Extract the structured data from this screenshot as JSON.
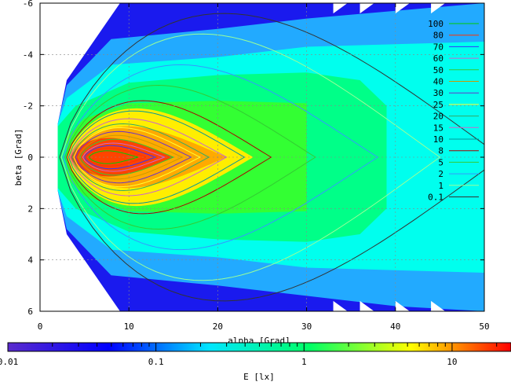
{
  "chart_data": {
    "type": "heatmap",
    "title": "",
    "xlabel": "alpha [Grad]",
    "ylabel": "beta [Grad]",
    "xlim": [
      0,
      50
    ],
    "ylim": [
      6,
      -6
    ],
    "x_ticks": [
      0,
      10,
      20,
      30,
      40,
      50
    ],
    "y_ticks": [
      -6,
      -4,
      -2,
      0,
      2,
      4,
      6
    ],
    "x_tick_labels": [
      "0",
      "10",
      "20",
      "30",
      "40",
      "50"
    ],
    "y_tick_labels": [
      "-6",
      "-4",
      "-2",
      "0",
      "2",
      "4",
      "6"
    ],
    "grid": true,
    "legend_placement": "top-right",
    "contour_levels": [
      {
        "label": "100",
        "color": "#00cc00"
      },
      {
        "label": "80",
        "color": "#ff3300"
      },
      {
        "label": "70",
        "color": "#3333ff"
      },
      {
        "label": "60",
        "color": "#cc66cc"
      },
      {
        "label": "50",
        "color": "#33cc33"
      },
      {
        "label": "40",
        "color": "#cc9900"
      },
      {
        "label": "30",
        "color": "#6633cc"
      },
      {
        "label": "25",
        "color": "#ffff33"
      },
      {
        "label": "20",
        "color": "#33aa66"
      },
      {
        "label": "15",
        "color": "#cc66cc"
      },
      {
        "label": "10",
        "color": "#009999"
      },
      {
        "label": "8",
        "color": "#aa0000"
      },
      {
        "label": "5",
        "color": "#33cc33"
      },
      {
        "label": "2",
        "color": "#3399ff"
      },
      {
        "label": "1",
        "color": "#99ff99"
      },
      {
        "label": "0.1",
        "color": "#333333"
      }
    ],
    "colorbar": {
      "label": "E [lx]",
      "scale": "log",
      "range": [
        0.01,
        25
      ],
      "tick_labels": [
        "0.01",
        "0.1",
        "1",
        "10"
      ],
      "tick_values": [
        0.01,
        0.1,
        1,
        10
      ],
      "colors": [
        "#5a2bcc",
        "#0000ff",
        "#00e6ff",
        "#00ff66",
        "#ffff00",
        "#ff0000"
      ]
    },
    "peak": {
      "alpha": 8,
      "beta": 0,
      "value": 100
    },
    "regions": [
      {
        "level": 0.01,
        "color": "#1a1aee"
      },
      {
        "level": 0.05,
        "color": "#22aaff"
      },
      {
        "level": 0.3,
        "color": "#00ffee"
      },
      {
        "level": 0.8,
        "color": "#00ff88"
      },
      {
        "level": 2,
        "color": "#33ff33"
      },
      {
        "level": 5,
        "color": "#ffee00"
      },
      {
        "level": 10,
        "color": "#ffaa00"
      },
      {
        "level": 25,
        "color": "#ff4400"
      }
    ]
  }
}
